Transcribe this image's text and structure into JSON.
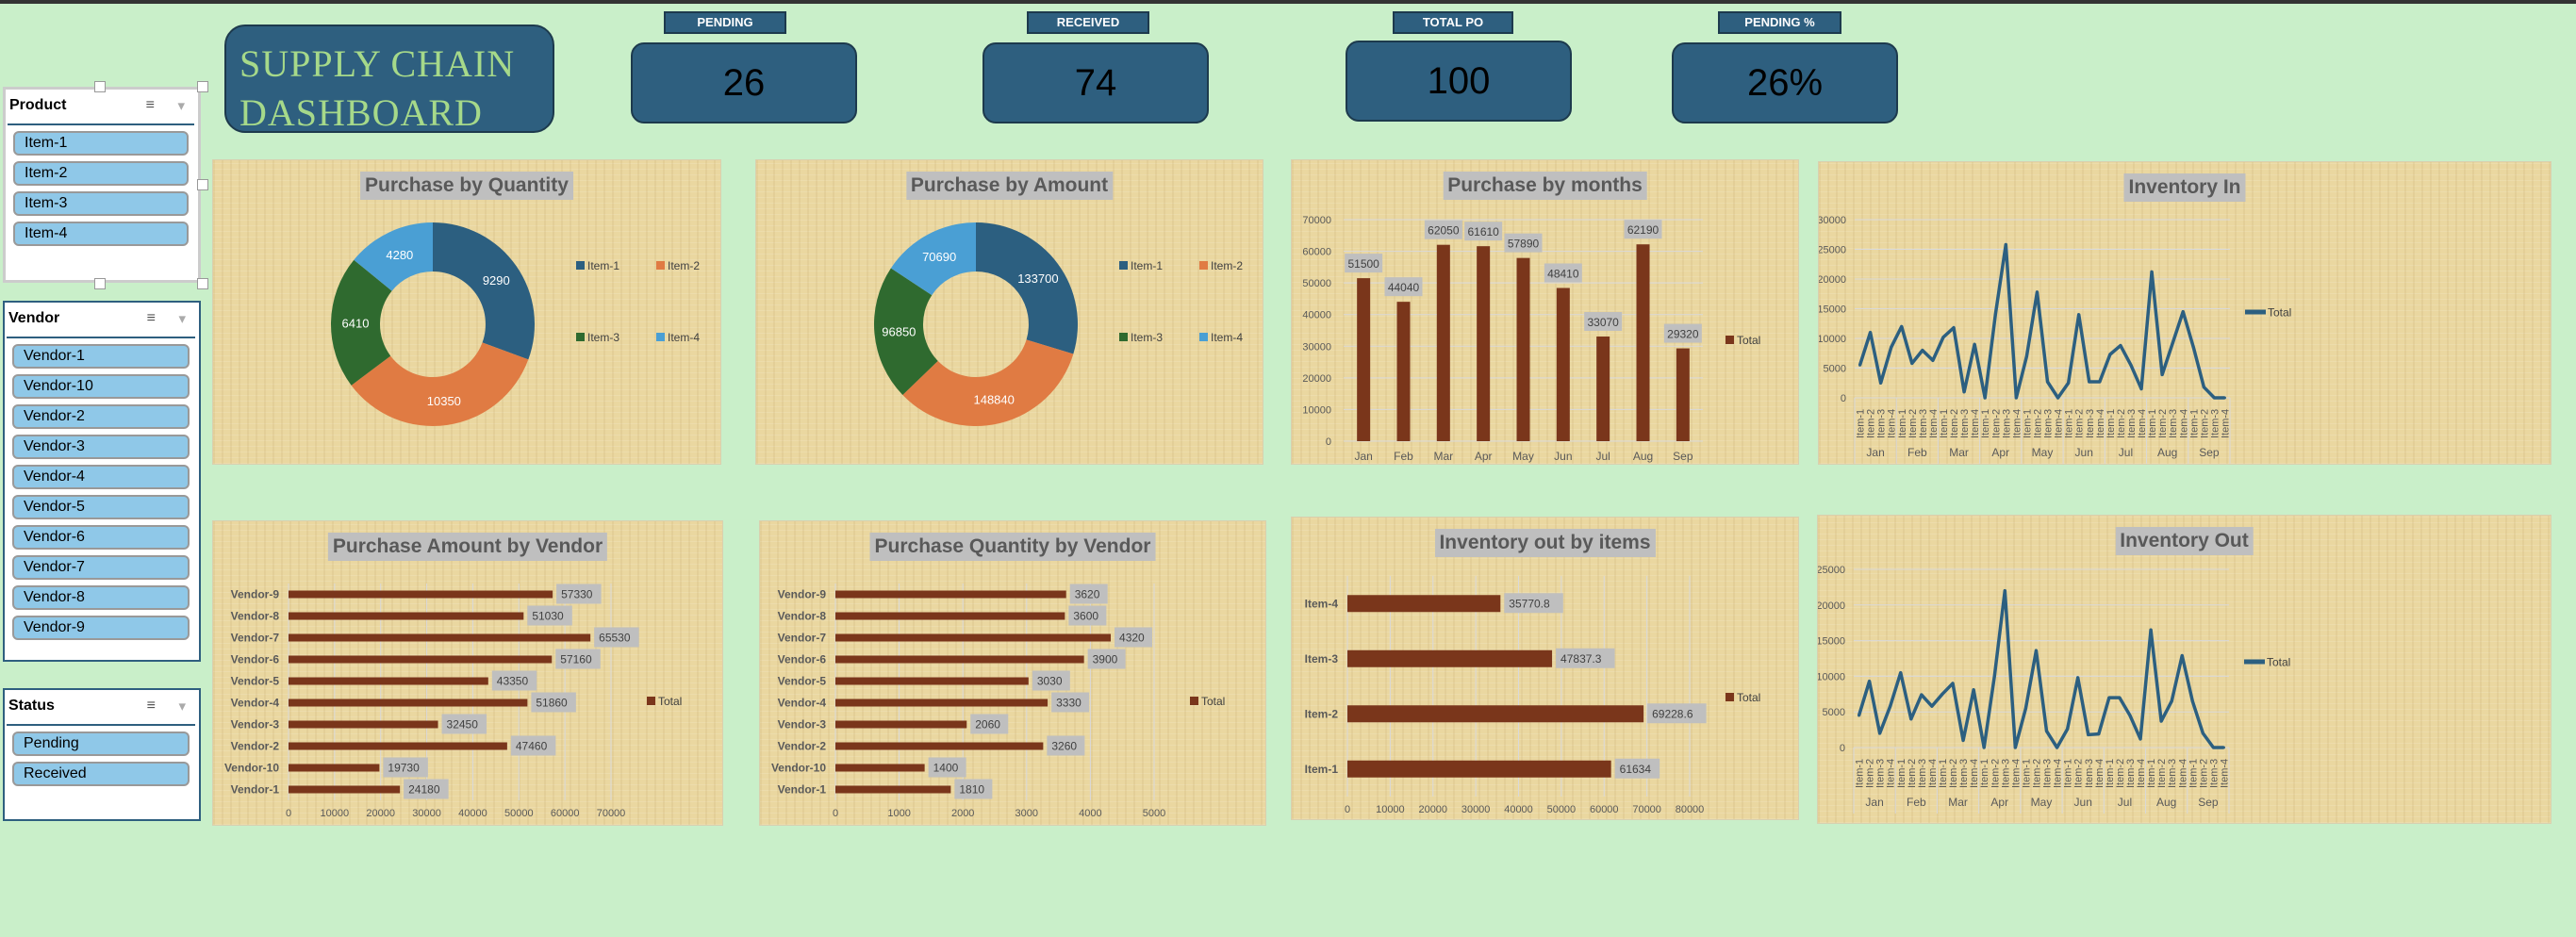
{
  "header": {
    "title_line1": "SUPPLY CHAIN",
    "title_line2": "DASHBOARD"
  },
  "kpis": [
    {
      "label": "PENDING",
      "value": "26"
    },
    {
      "label": "RECEIVED",
      "value": "74"
    },
    {
      "label": "TOTAL PO",
      "value": "100"
    },
    {
      "label": "PENDING %",
      "value": "26%"
    }
  ],
  "slicers": {
    "product": {
      "title": "Product",
      "items": [
        "Item-1",
        "Item-2",
        "Item-3",
        "Item-4"
      ]
    },
    "vendor": {
      "title": "Vendor",
      "items": [
        "Vendor-1",
        "Vendor-10",
        "Vendor-2",
        "Vendor-3",
        "Vendor-4",
        "Vendor-5",
        "Vendor-6",
        "Vendor-7",
        "Vendor-8",
        "Vendor-9"
      ]
    },
    "status": {
      "title": "Status",
      "items": [
        "Pending",
        "Received"
      ]
    },
    "multi_select_icon": "multi-select-icon",
    "clear_filter_icon": "clear-filter-icon"
  },
  "colors": {
    "bar": "#7a361b",
    "line": "#2c5f80",
    "item1": "#2c5f80",
    "item2": "#e07b43",
    "item3": "#2f6a2f",
    "item4": "#4a9fd4",
    "panel": "#ead7a0"
  },
  "chart_data": [
    {
      "id": "qty",
      "type": "pie",
      "donut": true,
      "title": "Purchase by Quantity",
      "categories": [
        "Item-1",
        "Item-2",
        "Item-3",
        "Item-4"
      ],
      "values": [
        9290,
        10350,
        6410,
        4280
      ],
      "legend": "right"
    },
    {
      "id": "amt",
      "type": "pie",
      "donut": true,
      "title": "Purchase by Amount",
      "categories": [
        "Item-1",
        "Item-2",
        "Item-3",
        "Item-4"
      ],
      "values": [
        133700,
        148840,
        96850,
        70690
      ],
      "legend": "right"
    },
    {
      "id": "months",
      "type": "bar",
      "orientation": "vertical",
      "title": "Purchase by months",
      "categories": [
        "Jan",
        "Feb",
        "Mar",
        "Apr",
        "May",
        "Jun",
        "Jul",
        "Aug",
        "Sep"
      ],
      "series": [
        {
          "name": "Total",
          "values": [
            51500,
            44040,
            62050,
            61610,
            57890,
            48410,
            33070,
            62190,
            29320
          ]
        }
      ],
      "ylim": [
        0,
        70000
      ],
      "yticks": [
        0,
        10000,
        20000,
        30000,
        40000,
        50000,
        60000,
        70000
      ],
      "grid": true,
      "legend": "right"
    },
    {
      "id": "invin",
      "type": "line",
      "title": "Inventory In",
      "months": [
        "Jan",
        "Feb",
        "Mar",
        "Apr",
        "May",
        "Jun",
        "Jul",
        "Aug",
        "Sep"
      ],
      "items": [
        "Item-1",
        "Item-2",
        "Item-3",
        "Item-4"
      ],
      "series": [
        {
          "name": "Total",
          "values": [
            5500,
            11000,
            2500,
            8500,
            12000,
            5800,
            8000,
            6300,
            10200,
            11800,
            1000,
            9000,
            0,
            14000,
            25800,
            0,
            7000,
            17800,
            2700,
            0,
            2500,
            14000,
            2700,
            2700,
            7300,
            8800,
            5500,
            1500,
            21200,
            3900,
            9200,
            14500,
            8500,
            1800,
            0,
            0
          ]
        }
      ],
      "ylim": [
        0,
        30000
      ],
      "yticks": [
        0,
        5000,
        10000,
        15000,
        20000,
        25000,
        30000
      ],
      "grid": true,
      "legend": "right"
    },
    {
      "id": "vamt",
      "type": "bar",
      "orientation": "horizontal",
      "title": "Purchase Amount by Vendor",
      "categories": [
        "Vendor-1",
        "Vendor-10",
        "Vendor-2",
        "Vendor-3",
        "Vendor-4",
        "Vendor-5",
        "Vendor-6",
        "Vendor-7",
        "Vendor-8",
        "Vendor-9"
      ],
      "series": [
        {
          "name": "Total",
          "values": [
            24180,
            19730,
            47460,
            32450,
            51860,
            43350,
            57160,
            65530,
            51030,
            57330
          ]
        }
      ],
      "xlim": [
        0,
        70000
      ],
      "xticks": [
        0,
        10000,
        20000,
        30000,
        40000,
        50000,
        60000,
        70000
      ],
      "grid": true,
      "legend": "right"
    },
    {
      "id": "vqty",
      "type": "bar",
      "orientation": "horizontal",
      "title": "Purchase Quantity by Vendor",
      "categories": [
        "Vendor-1",
        "Vendor-10",
        "Vendor-2",
        "Vendor-3",
        "Vendor-4",
        "Vendor-5",
        "Vendor-6",
        "Vendor-7",
        "Vendor-8",
        "Vendor-9"
      ],
      "series": [
        {
          "name": "Total",
          "values": [
            1810,
            1400,
            3260,
            2060,
            3330,
            3030,
            3900,
            4320,
            3600,
            3620
          ]
        }
      ],
      "xlim": [
        0,
        5000
      ],
      "xticks": [
        0,
        1000,
        2000,
        3000,
        4000,
        5000
      ],
      "grid": true,
      "legend": "right"
    },
    {
      "id": "invitems",
      "type": "bar",
      "orientation": "horizontal",
      "title": "Inventory out by items",
      "categories": [
        "Item-1",
        "Item-2",
        "Item-3",
        "Item-4"
      ],
      "series": [
        {
          "name": "Total",
          "values": [
            61634,
            69228.6,
            47837.3,
            35770.8
          ]
        }
      ],
      "xlim": [
        0,
        80000
      ],
      "xticks": [
        0,
        10000,
        20000,
        30000,
        40000,
        50000,
        60000,
        70000,
        80000
      ],
      "grid": true,
      "legend": "right"
    },
    {
      "id": "invout",
      "type": "line",
      "title": "Inventory Out",
      "months": [
        "Jan",
        "Feb",
        "Mar",
        "Apr",
        "May",
        "Jun",
        "Jul",
        "Aug",
        "Sep"
      ],
      "items": [
        "Item-1",
        "Item-2",
        "Item-3",
        "Item-4"
      ],
      "series": [
        {
          "name": "Total",
          "values": [
            4500,
            9300,
            2000,
            5800,
            10500,
            4000,
            7400,
            5800,
            7500,
            9000,
            1000,
            8100,
            0,
            10000,
            22000,
            0,
            5500,
            13600,
            2300,
            0,
            2600,
            9800,
            1800,
            1900,
            7000,
            7000,
            4500,
            1200,
            16500,
            3700,
            6500,
            12900,
            6500,
            2000,
            0,
            0
          ]
        }
      ],
      "ylim": [
        0,
        25000
      ],
      "yticks": [
        0,
        5000,
        10000,
        15000,
        20000,
        25000
      ],
      "grid": true,
      "legend": "right"
    }
  ]
}
